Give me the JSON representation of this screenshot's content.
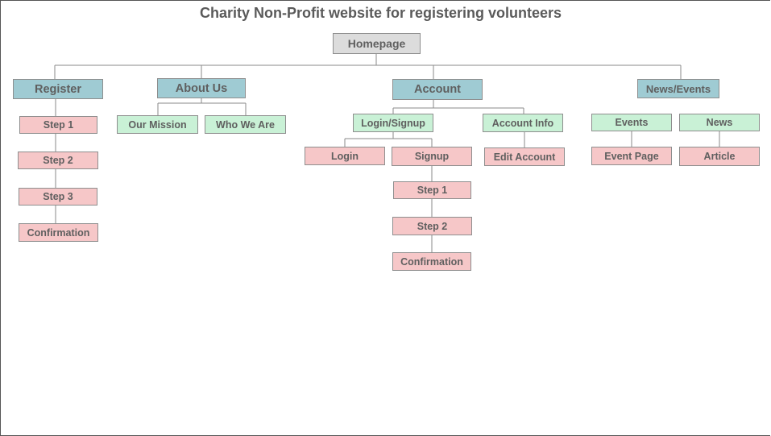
{
  "title": "Charity Non-Profit website for registering volunteers",
  "nodes": {
    "homepage": "Homepage",
    "register": "Register",
    "register_step1": "Step 1",
    "register_step2": "Step 2",
    "register_step3": "Step 3",
    "register_confirmation": "Confirmation",
    "about_us": "About Us",
    "our_mission": "Our Mission",
    "who_we_are": "Who We Are",
    "account": "Account",
    "login_signup": "Login/Signup",
    "login": "Login",
    "signup": "Signup",
    "signup_step1": "Step 1",
    "signup_step2": "Step 2",
    "signup_confirmation": "Confirmation",
    "account_info": "Account Info",
    "edit_account": "Edit Account",
    "news_events": "News/Events",
    "events": "Events",
    "event_page": "Event Page",
    "news": "News",
    "article": "Article"
  },
  "colors": {
    "gray": "#dcdcdc",
    "blue": "#9fcbd3",
    "green": "#c9f1d6",
    "pink": "#f6c7c8",
    "border": "#8e8e8e",
    "text": "#5f5f5f"
  }
}
